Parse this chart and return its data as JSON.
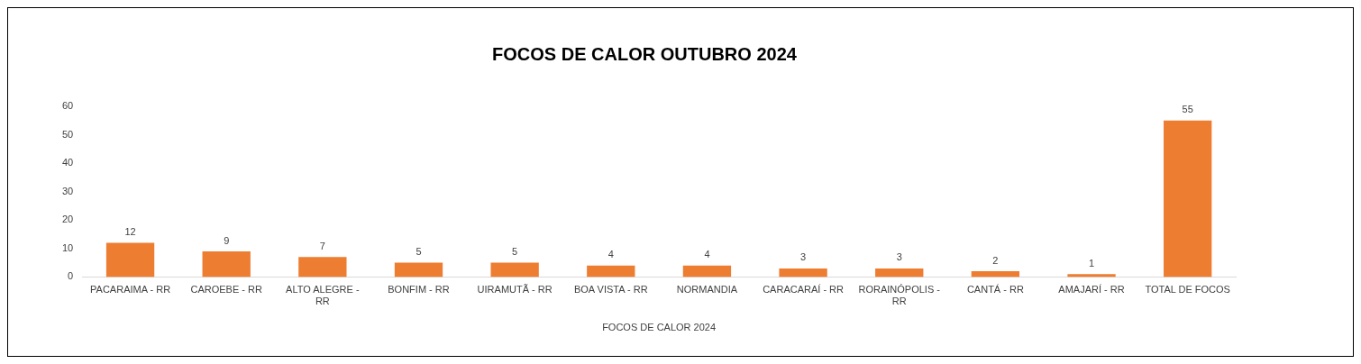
{
  "chart_data": {
    "type": "bar",
    "title": "FOCOS DE CALOR OUTUBRO 2024",
    "xlabel": "FOCOS DE CALOR 2024",
    "categories": [
      "PACARAIMA - RR",
      "CAROEBE - RR",
      "ALTO ALEGRE - RR",
      "BONFIM - RR",
      "UIRAMUTÃ - RR",
      "BOA VISTA - RR",
      "NORMANDIA",
      "CARACARAÍ - RR",
      "RORAINÓPOLIS - RR",
      "CANTÁ - RR",
      "AMAJARÍ - RR",
      "TOTAL DE FOCOS"
    ],
    "values": [
      12,
      9,
      7,
      5,
      5,
      4,
      4,
      3,
      3,
      2,
      1,
      55
    ],
    "color": "#ed7d31",
    "ylim": [
      0,
      60
    ],
    "yticks": [
      0,
      10,
      20,
      30,
      40,
      50,
      60
    ],
    "grid": false,
    "legend": false,
    "data_labels": true
  }
}
